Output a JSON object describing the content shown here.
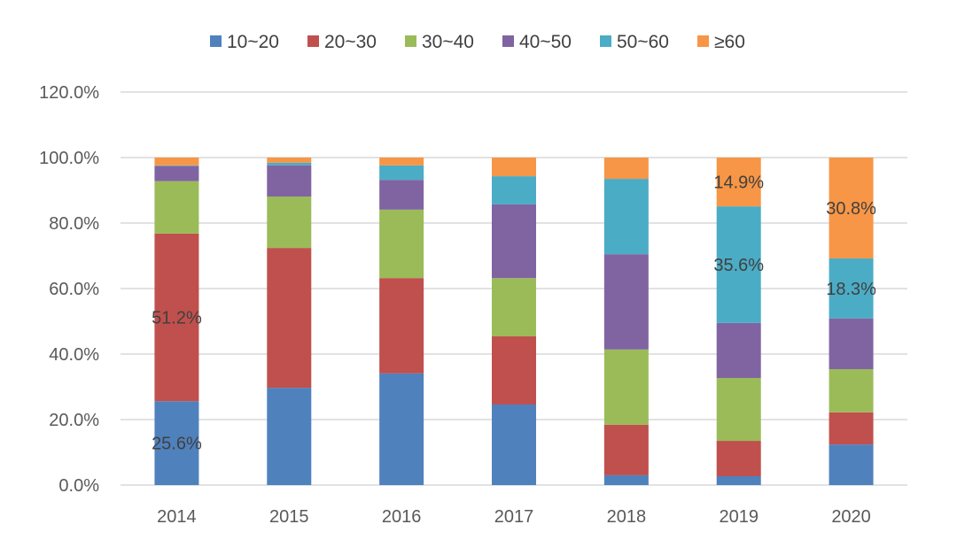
{
  "chart_data": {
    "type": "bar",
    "stacked": true,
    "title": "",
    "xlabel": "",
    "ylabel": "",
    "ylim": [
      0,
      120
    ],
    "yticks": [
      "0.0%",
      "20.0%",
      "40.0%",
      "60.0%",
      "80.0%",
      "100.0%",
      "120.0%"
    ],
    "ytick_values": [
      0,
      20,
      40,
      60,
      80,
      100,
      120
    ],
    "grid": true,
    "legend_position": "top",
    "categories": [
      "2014",
      "2015",
      "2016",
      "2017",
      "2018",
      "2019",
      "2020"
    ],
    "series": [
      {
        "name": "10~20",
        "color": "#4F81BD",
        "values": [
          25.6,
          29.7,
          34.1,
          24.6,
          3.0,
          2.7,
          12.4
        ]
      },
      {
        "name": "20~30",
        "color": "#C0504D",
        "values": [
          51.2,
          42.7,
          29.1,
          20.8,
          15.4,
          10.8,
          9.8
        ]
      },
      {
        "name": "30~40",
        "color": "#9BBB59",
        "values": [
          16.0,
          15.7,
          20.9,
          17.8,
          23.0,
          19.2,
          13.2
        ]
      },
      {
        "name": "40~50",
        "color": "#8064A2",
        "values": [
          4.6,
          9.5,
          9.1,
          22.5,
          29.1,
          16.8,
          15.5
        ]
      },
      {
        "name": "50~60",
        "color": "#4BACC6",
        "values": [
          0.2,
          0.8,
          4.4,
          8.6,
          23.0,
          35.6,
          18.3
        ]
      },
      {
        "name": "≥60",
        "color": "#F79646",
        "values": [
          2.4,
          1.6,
          2.4,
          5.7,
          6.5,
          14.9,
          30.8
        ]
      }
    ],
    "data_labels": [
      {
        "category": "2014",
        "series": "10~20",
        "text": "25.6%"
      },
      {
        "category": "2014",
        "series": "20~30",
        "text": "51.2%"
      },
      {
        "category": "2019",
        "series": "50~60",
        "text": "35.6%"
      },
      {
        "category": "2019",
        "series": "≥60",
        "text": "14.9%"
      },
      {
        "category": "2020",
        "series": "50~60",
        "text": "18.3%"
      },
      {
        "category": "2020",
        "series": "≥60",
        "text": "30.8%"
      }
    ]
  }
}
